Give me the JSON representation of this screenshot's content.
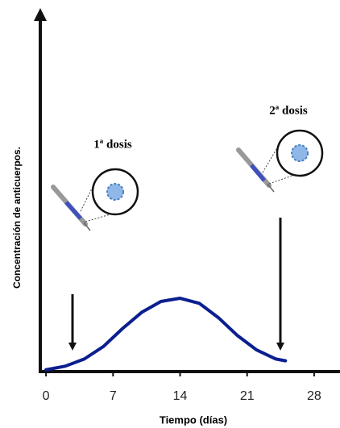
{
  "chart_data": {
    "type": "line",
    "x_label": "Tiempo (días)",
    "y_label": "Concentración de anticuerpos.",
    "annotations": [
      "1ª dosis",
      "2ª dosis"
    ],
    "x": [
      0,
      2,
      4,
      6,
      8,
      10,
      12,
      14,
      16,
      18,
      20,
      22,
      24,
      25
    ],
    "series": [
      {
        "color": "#0b1f8f",
        "values": [
          0.5,
          1.5,
          3.5,
          7,
          12,
          16.5,
          19.5,
          20.4,
          19,
          15,
          10,
          6,
          3.5,
          3
        ]
      }
    ],
    "xlim": [
      -0.6,
      30.7
    ],
    "ylim": [
      0,
      100
    ],
    "xticks": [
      0,
      7,
      14,
      21,
      28
    ]
  }
}
